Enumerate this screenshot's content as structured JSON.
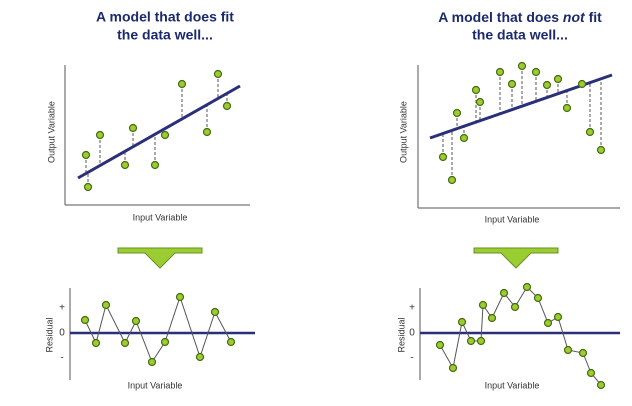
{
  "left": {
    "title": [
      "A model that does fit",
      "the data well..."
    ],
    "fit_plot": {
      "y_label": "Output Variable",
      "x_label": "Input Variable"
    },
    "residual_plot": {
      "y_label": "Residual",
      "x_label": "Input Variable",
      "ticks": [
        "+",
        "0",
        "-"
      ]
    }
  },
  "right": {
    "title": {
      "line1": [
        "A model that does ",
        "not",
        " fit"
      ],
      "line2": "the data well..."
    },
    "fit_plot": {
      "y_label": "Output Variable",
      "x_label": "Input Variable"
    },
    "residual_plot": {
      "y_label": "Residual",
      "x_label": "Input Variable",
      "ticks": [
        "+",
        "0",
        "-"
      ]
    }
  }
}
